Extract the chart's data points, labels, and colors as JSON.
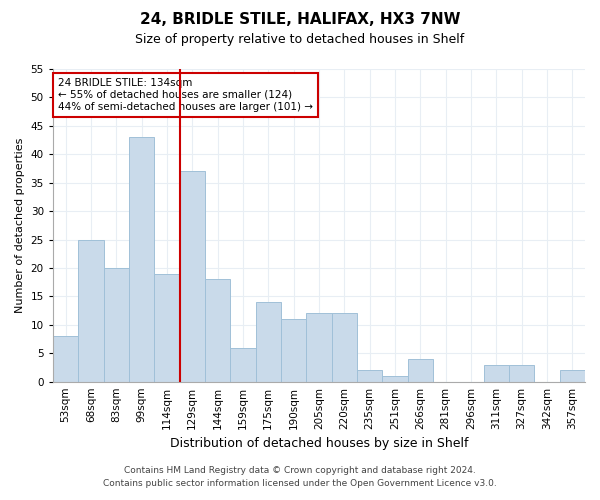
{
  "title1": "24, BRIDLE STILE, HALIFAX, HX3 7NW",
  "title2": "Size of property relative to detached houses in Shelf",
  "xlabel": "Distribution of detached houses by size in Shelf",
  "ylabel": "Number of detached properties",
  "categories": [
    "53sqm",
    "68sqm",
    "83sqm",
    "99sqm",
    "114sqm",
    "129sqm",
    "144sqm",
    "159sqm",
    "175sqm",
    "190sqm",
    "205sqm",
    "220sqm",
    "235sqm",
    "251sqm",
    "266sqm",
    "281sqm",
    "296sqm",
    "311sqm",
    "327sqm",
    "342sqm",
    "357sqm"
  ],
  "values": [
    8,
    25,
    20,
    43,
    19,
    37,
    18,
    6,
    14,
    11,
    12,
    12,
    2,
    1,
    4,
    0,
    0,
    3,
    3,
    0,
    2
  ],
  "bar_color": "#c9daea",
  "bar_edge_color": "#a0c0d8",
  "ylim": [
    0,
    55
  ],
  "yticks": [
    0,
    5,
    10,
    15,
    20,
    25,
    30,
    35,
    40,
    45,
    50,
    55
  ],
  "property_line_index": 4,
  "property_line_color": "#cc0000",
  "annotation_text": "24 BRIDLE STILE: 134sqm\n← 55% of detached houses are smaller (124)\n44% of semi-detached houses are larger (101) →",
  "annotation_box_facecolor": "#ffffff",
  "annotation_box_edgecolor": "#cc0000",
  "footer1": "Contains HM Land Registry data © Crown copyright and database right 2024.",
  "footer2": "Contains public sector information licensed under the Open Government Licence v3.0.",
  "bg_color": "#ffffff",
  "plot_bg_color": "#ffffff",
  "grid_color": "#e8eef4",
  "title1_fontsize": 11,
  "title2_fontsize": 9,
  "xlabel_fontsize": 9,
  "ylabel_fontsize": 8,
  "tick_fontsize": 7.5,
  "footer_fontsize": 6.5
}
